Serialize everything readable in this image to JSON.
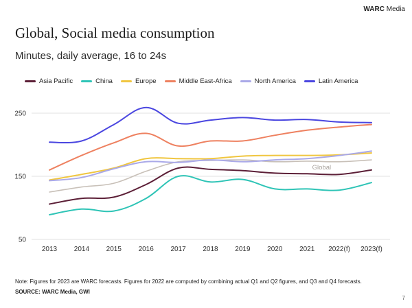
{
  "brand": {
    "bold": "WARC",
    "rest": "Media"
  },
  "page_number": "7",
  "note": "Note: Figures for 2023 are WARC forecasts. Figures for 2022 are computed by combining actual Q1 and Q2 figures, and Q3 and Q4 forecasts.",
  "source": "SOURCE: WARC Media, GWI",
  "chart_data": {
    "type": "line",
    "title": "Global, Social media consumption",
    "subtitle": "Minutes, daily average, 16 to 24s",
    "xlabel": "",
    "ylabel": "",
    "categories": [
      "2013",
      "2014",
      "2015",
      "2016",
      "2017",
      "2018",
      "2019",
      "2020",
      "2021",
      "2022(f)",
      "2023(f)"
    ],
    "yticks": [
      50,
      150,
      250
    ],
    "ylim": [
      50,
      250
    ],
    "grid": "horizontal",
    "legend_position": "top",
    "series": [
      {
        "name": "Asia Pacific",
        "color": "#5c1f37",
        "values": [
          106,
          115,
          117,
          137,
          163,
          161,
          159,
          155,
          154,
          153,
          160
        ],
        "in_legend": true
      },
      {
        "name": "China",
        "color": "#2ec4b6",
        "values": [
          89,
          98,
          95,
          115,
          150,
          141,
          145,
          130,
          130,
          128,
          140
        ],
        "in_legend": true
      },
      {
        "name": "Europe",
        "color": "#f0c640",
        "values": [
          144,
          153,
          163,
          178,
          178,
          178,
          182,
          183,
          183,
          184,
          187
        ],
        "in_legend": true
      },
      {
        "name": "Middle East-Africa",
        "color": "#ee8160",
        "values": [
          160,
          183,
          203,
          218,
          198,
          206,
          206,
          215,
          223,
          228,
          232
        ],
        "in_legend": true
      },
      {
        "name": "North America",
        "color": "#aaa9e8",
        "values": [
          143,
          148,
          162,
          173,
          172,
          176,
          173,
          176,
          178,
          183,
          190
        ],
        "in_legend": true
      },
      {
        "name": "Latin America",
        "color": "#4a46e0",
        "values": [
          204,
          206,
          232,
          259,
          234,
          239,
          243,
          239,
          240,
          236,
          235
        ],
        "in_legend": true
      },
      {
        "name": "Global",
        "color": "#c8c0b8",
        "values": [
          125,
          133,
          139,
          158,
          173,
          175,
          176,
          173,
          174,
          173,
          176
        ],
        "in_legend": false,
        "label": "Global"
      }
    ]
  }
}
